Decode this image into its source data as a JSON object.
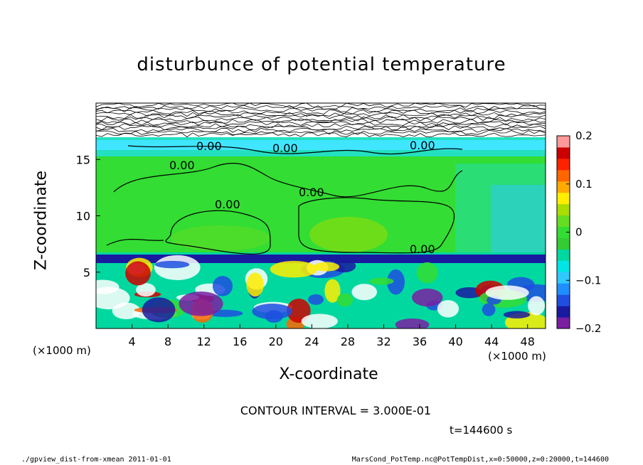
{
  "chart_data": {
    "type": "heatmap",
    "title": "disturbunce of potential temperature",
    "xlabel": "X-coordinate",
    "ylabel": "Z-coordinate",
    "x_unit": "(×1000 m)",
    "x_ticks": [
      4,
      8,
      12,
      16,
      20,
      24,
      28,
      32,
      36,
      40,
      44,
      48
    ],
    "y_ticks": [
      5,
      10,
      15
    ],
    "xlim": [
      0,
      50
    ],
    "ylim": [
      0,
      20
    ],
    "colorbar": {
      "ticks": [
        0.2,
        0.1,
        0,
        -0.1,
        -0.2
      ],
      "tick_labels": [
        "0.2",
        "0.1",
        "0",
        "−0.1",
        "−0.2"
      ],
      "range": [
        -0.2,
        0.2
      ],
      "colors": [
        "#7a1fa2",
        "#1a1aa0",
        "#1f4fe0",
        "#1f8fff",
        "#2fc8ff",
        "#00e6e6",
        "#00d8a0",
        "#33cc33",
        "#33dd33",
        "#66dd22",
        "#aadd00",
        "#ffee00",
        "#ffaa00",
        "#ff6600",
        "#ff2200",
        "#cc0000",
        "#ff9999"
      ]
    },
    "contour_labels": [
      "0.00",
      "0.00",
      "0.00",
      "0.00",
      "0.00",
      "0.00",
      "0.00"
    ],
    "contour_interval": "CONTOUR INTERVAL = 3.000E-01",
    "time": "t=144600 s"
  },
  "footer": {
    "left": "./gpview_dist-from-xmean   2011-01-01",
    "right": "MarsCond_PotTemp.nc@PotTempDist,x=0:50000,z=0:20000,t=144600"
  }
}
